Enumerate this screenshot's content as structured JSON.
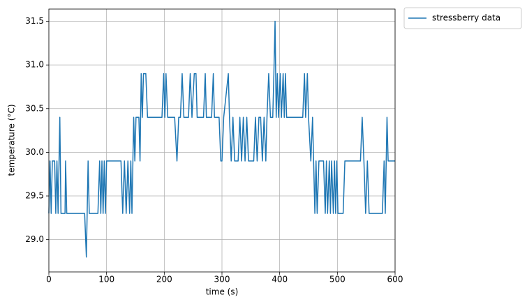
{
  "chart_data": {
    "type": "line",
    "xlabel": "time (s)",
    "ylabel": "temperature (°C)",
    "xlim": [
      0,
      600
    ],
    "xticks": [
      0,
      100,
      200,
      300,
      400,
      500,
      600
    ],
    "ylim": [
      28.63,
      31.64
    ],
    "yticks": [
      {
        "value": 29,
        "label": "29.0"
      },
      29.5,
      {
        "value": 30,
        "label": "30.0"
      },
      30.5,
      {
        "value": 31,
        "label": "31.0"
      },
      31.5
    ],
    "grid": true,
    "legend": "outside upper right",
    "x": [
      0,
      2,
      4,
      6,
      10,
      12,
      14,
      16,
      19,
      21,
      28,
      29,
      31,
      62,
      65,
      68,
      70,
      85,
      88,
      90,
      92,
      94,
      96,
      98,
      100,
      125,
      128,
      131,
      134,
      137,
      140,
      142,
      144,
      147,
      149,
      151,
      156,
      158,
      160,
      162,
      164,
      168,
      171,
      196,
      199,
      201,
      203,
      206,
      218,
      222,
      225,
      228,
      231,
      234,
      242,
      245,
      248,
      252,
      255,
      257,
      268,
      271,
      273,
      282,
      285,
      287,
      295,
      298,
      300,
      303,
      311,
      313,
      316,
      319,
      322,
      328,
      331,
      334,
      337,
      340,
      343,
      346,
      355,
      358,
      361,
      364,
      367,
      370,
      373,
      376,
      378,
      381,
      384,
      388,
      390,
      392,
      394,
      396,
      398,
      401,
      403,
      406,
      408,
      410,
      412,
      440,
      443,
      445,
      448,
      450,
      454,
      457,
      461,
      463,
      465,
      468,
      476,
      479,
      481,
      483,
      486,
      488,
      490,
      493,
      495,
      497,
      499,
      501,
      510,
      513,
      540,
      543,
      546,
      549,
      552,
      555,
      578,
      581,
      583,
      586,
      588,
      600
    ],
    "series": [
      {
        "name": "stressberry data",
        "color": "#1f77b4",
        "values": [
          29.3,
          29.9,
          29.3,
          29.9,
          29.9,
          29.3,
          29.9,
          29.3,
          30.4,
          29.3,
          29.3,
          29.9,
          29.3,
          29.3,
          28.8,
          29.9,
          29.3,
          29.3,
          29.9,
          29.3,
          29.9,
          29.3,
          29.9,
          29.3,
          29.9,
          29.9,
          29.3,
          29.9,
          29.3,
          29.9,
          29.3,
          29.9,
          29.3,
          30.4,
          29.9,
          30.4,
          30.4,
          29.9,
          30.9,
          30.4,
          30.9,
          30.9,
          30.4,
          30.4,
          30.9,
          30.4,
          30.9,
          30.4,
          30.4,
          29.9,
          30.4,
          30.4,
          30.9,
          30.4,
          30.4,
          30.9,
          30.4,
          30.9,
          30.9,
          30.4,
          30.4,
          30.9,
          30.4,
          30.4,
          30.9,
          30.4,
          30.4,
          29.9,
          29.9,
          30.4,
          30.9,
          30.4,
          29.9,
          30.4,
          29.9,
          29.9,
          30.4,
          29.9,
          30.4,
          29.9,
          30.4,
          29.9,
          29.9,
          30.4,
          29.9,
          30.4,
          30.4,
          29.9,
          30.4,
          29.9,
          30.4,
          30.9,
          30.4,
          30.4,
          30.9,
          31.5,
          30.4,
          30.9,
          30.4,
          30.9,
          30.4,
          30.9,
          30.4,
          30.9,
          30.4,
          30.4,
          30.9,
          30.4,
          30.9,
          30.4,
          29.9,
          30.4,
          29.3,
          29.9,
          29.3,
          29.9,
          29.9,
          29.3,
          29.9,
          29.3,
          29.9,
          29.3,
          29.9,
          29.3,
          29.9,
          29.3,
          29.9,
          29.3,
          29.3,
          29.9,
          29.9,
          30.4,
          29.9,
          29.3,
          29.9,
          29.3,
          29.3,
          29.9,
          29.3,
          30.4,
          29.9,
          29.9
        ]
      }
    ]
  }
}
